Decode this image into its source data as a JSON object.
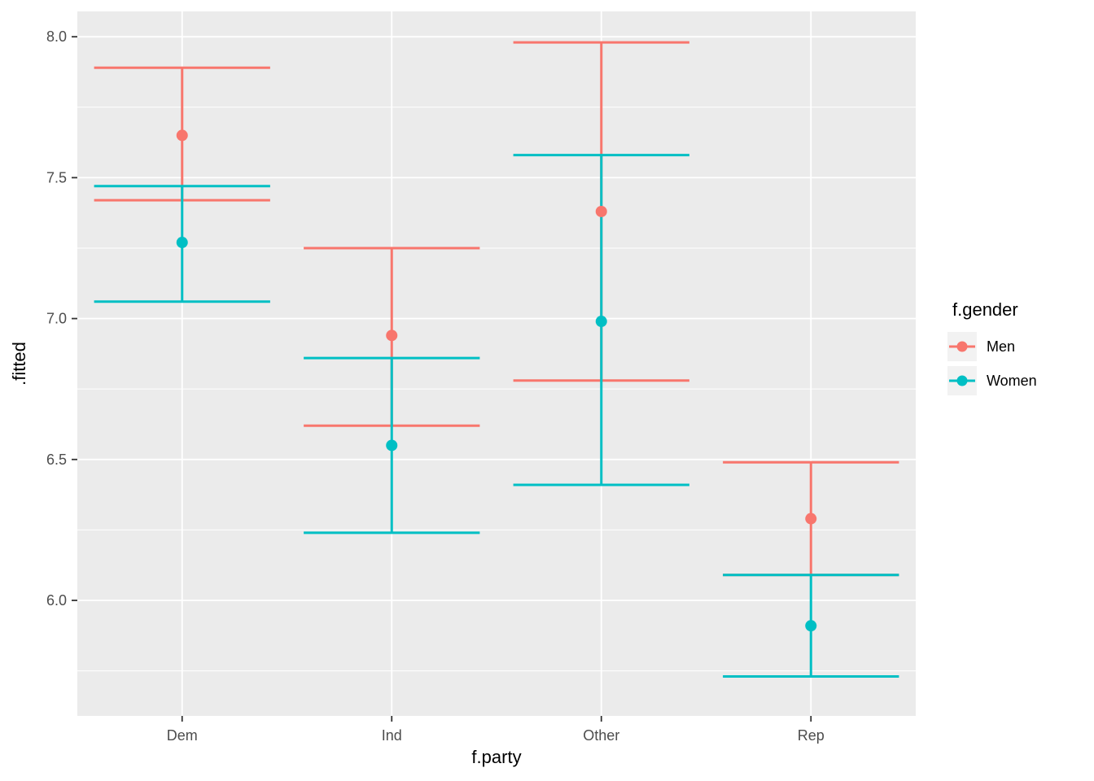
{
  "chart_data": {
    "type": "pointrange",
    "title": "",
    "xlabel": "f.party",
    "ylabel": ".fitted",
    "categories": [
      "Dem",
      "Ind",
      "Other",
      "Rep"
    ],
    "series": [
      {
        "name": "Men",
        "color": "#F8766D",
        "points": [
          {
            "category": "Dem",
            "fitted": 7.65,
            "ymin": 7.42,
            "ymax": 7.89
          },
          {
            "category": "Ind",
            "fitted": 6.94,
            "ymin": 6.62,
            "ymax": 7.25
          },
          {
            "category": "Other",
            "fitted": 7.38,
            "ymin": 6.78,
            "ymax": 7.98
          },
          {
            "category": "Rep",
            "fitted": 6.29,
            "ymin": 6.09,
            "ymax": 6.49
          }
        ]
      },
      {
        "name": "Women",
        "color": "#00BFC4",
        "points": [
          {
            "category": "Dem",
            "fitted": 7.27,
            "ymin": 7.06,
            "ymax": 7.47
          },
          {
            "category": "Ind",
            "fitted": 6.55,
            "ymin": 6.24,
            "ymax": 6.86
          },
          {
            "category": "Other",
            "fitted": 6.99,
            "ymin": 6.41,
            "ymax": 7.58
          },
          {
            "category": "Rep",
            "fitted": 5.91,
            "ymin": 5.73,
            "ymax": 6.09
          }
        ]
      }
    ],
    "y_ticks": [
      6.0,
      6.5,
      7.0,
      7.5,
      8.0
    ],
    "y_tick_labels": [
      "6.0",
      "6.5",
      "7.0",
      "7.5",
      "8.0"
    ],
    "y_minor_ticks": [
      5.75,
      6.25,
      6.75,
      7.25,
      7.75
    ],
    "ylim": [
      5.59,
      8.09
    ],
    "grid": true,
    "legend": {
      "title": "f.gender",
      "position": "right",
      "items": [
        {
          "label": "Men",
          "color": "#F8766D"
        },
        {
          "label": "Women",
          "color": "#00BFC4"
        }
      ]
    },
    "style": {
      "panel_bg": "#EBEBEB",
      "grid_color": "#FFFFFF",
      "tick_mark_color": "#333333",
      "tick_text_color": "#4D4D4D",
      "axis_title_color": "#000000",
      "legend_key_bg": "#F2F2F2"
    }
  }
}
